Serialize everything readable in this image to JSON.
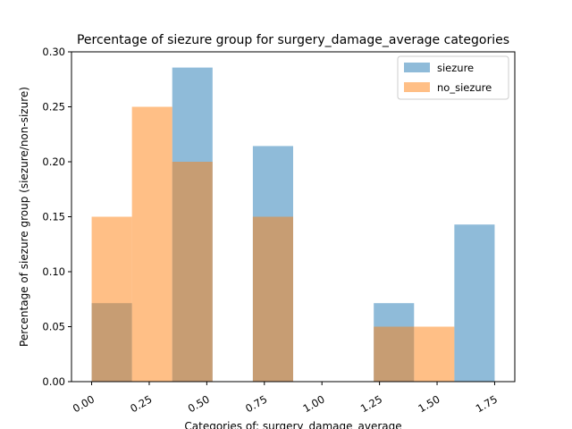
{
  "chart_data": {
    "type": "bar",
    "title": "Percentage of siezure group for surgery_damage_average categories",
    "xlabel": "Categories of: surgery_damage_average",
    "ylabel": "Percentage of siezure group (siezure/non-sizure)",
    "xlim": [
      -0.0875,
      1.8375
    ],
    "ylim": [
      0,
      0.3
    ],
    "xticks": [
      "0.00",
      "0.25",
      "0.50",
      "0.75",
      "1.00",
      "1.25",
      "1.50",
      "1.75"
    ],
    "yticks": [
      "0.00",
      "0.05",
      "0.10",
      "0.15",
      "0.20",
      "0.25",
      "0.30"
    ],
    "bin_edges": [
      0.0,
      0.175,
      0.35,
      0.525,
      0.7,
      0.875,
      1.05,
      1.225,
      1.4,
      1.575,
      1.75
    ],
    "legend_position": "top-right",
    "grid": false,
    "series": [
      {
        "name": "siezure",
        "color": "#1f77b4",
        "values": [
          0.0714,
          0.0,
          0.2857,
          0.0,
          0.2143,
          0.0,
          0.0,
          0.0714,
          0.0,
          0.1429
        ]
      },
      {
        "name": "no_siezure",
        "color": "#ff7f0e",
        "values": [
          0.15,
          0.25,
          0.2,
          0.0,
          0.15,
          0.0,
          0.0,
          0.05,
          0.05,
          0.0
        ]
      }
    ]
  }
}
